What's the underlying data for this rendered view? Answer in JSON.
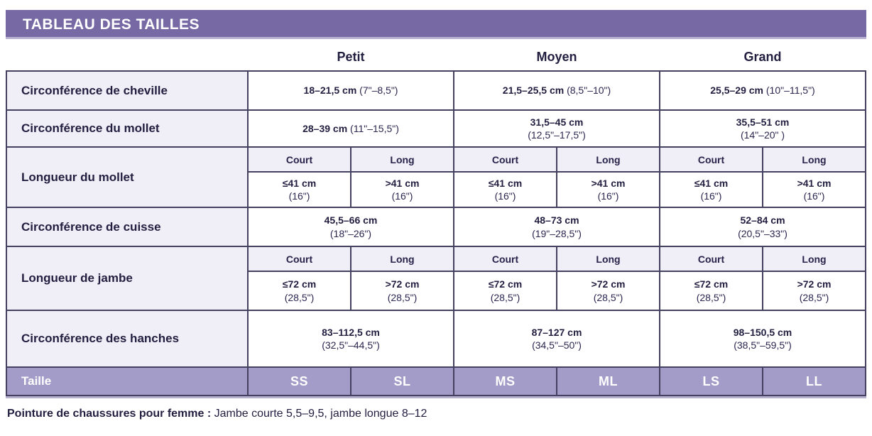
{
  "title": "TABLEAU DES TAILLES",
  "columns": {
    "petit": "Petit",
    "moyen": "Moyen",
    "grand": "Grand"
  },
  "subcols": {
    "court": "Court",
    "long": "Long"
  },
  "rows": {
    "ankle": {
      "label": "Circonférence de cheville",
      "petit": {
        "cm": "18–21,5 cm",
        "in": "(7\"–8,5\")"
      },
      "moyen": {
        "cm": "21,5–25,5 cm",
        "in": "(8,5\"–10\")"
      },
      "grand": {
        "cm": "25,5–29 cm",
        "in": "(10\"–11,5\")"
      }
    },
    "calf_circ": {
      "label": "Circonférence du mollet",
      "petit": {
        "cm": "28–39 cm",
        "in": "(11\"–15,5\")"
      },
      "moyen": {
        "cm": "31,5–45 cm",
        "in": "(12,5\"–17,5\")"
      },
      "grand": {
        "cm": "35,5–51 cm",
        "in": "(14\"–20\" )"
      }
    },
    "calf_len": {
      "label": "Longueur du mollet",
      "petit_court": {
        "cm": "≤41 cm",
        "in": "(16\")"
      },
      "petit_long": {
        "cm": ">41 cm",
        "in": "(16\")"
      },
      "moyen_court": {
        "cm": "≤41 cm",
        "in": "(16\")"
      },
      "moyen_long": {
        "cm": ">41 cm",
        "in": "(16\")"
      },
      "grand_court": {
        "cm": "≤41 cm",
        "in": "(16\")"
      },
      "grand_long": {
        "cm": ">41 cm",
        "in": "(16\")"
      }
    },
    "thigh": {
      "label": "Circonférence de cuisse",
      "petit": {
        "cm": "45,5–66 cm",
        "in": "(18\"–26\")"
      },
      "moyen": {
        "cm": "48–73 cm",
        "in": "(19\"–28,5\")"
      },
      "grand": {
        "cm": "52–84 cm",
        "in": "(20,5\"–33\")"
      }
    },
    "leg_len": {
      "label": "Longueur de jambe",
      "petit_court": {
        "cm": "≤72 cm",
        "in": "(28,5\")"
      },
      "petit_long": {
        "cm": ">72 cm",
        "in": "(28,5\")"
      },
      "moyen_court": {
        "cm": "≤72 cm",
        "in": "(28,5\")"
      },
      "moyen_long": {
        "cm": ">72 cm",
        "in": "(28,5\")"
      },
      "grand_court": {
        "cm": "≤72 cm",
        "in": "(28,5\")"
      },
      "grand_long": {
        "cm": ">72 cm",
        "in": "(28,5\")"
      }
    },
    "hips": {
      "label": "Circonférence des hanches",
      "petit": {
        "cm": "83–112,5 cm",
        "in": "(32,5\"–44,5\")"
      },
      "moyen": {
        "cm": "87–127 cm",
        "in": "(34,5\"–50\")"
      },
      "grand": {
        "cm": "98–150,5 cm",
        "in": "(38,5\"–59,5\")"
      }
    },
    "size": {
      "label": "Taille",
      "values": [
        "SS",
        "SL",
        "MS",
        "ML",
        "LS",
        "LL"
      ]
    }
  },
  "footer": {
    "label": "Pointure de chaussures pour femme :",
    "text": "Jambe courte 5,5–9,5, jambe longue 8–12"
  },
  "colors": {
    "header_purple": "#776aa4",
    "size_row_purple": "#a39bc8",
    "cell_lavender": "#f0eef6",
    "border": "#434060",
    "text": "#221e40"
  },
  "chart_data": {
    "type": "table",
    "title": "TABLEAU DES TAILLES",
    "columns": [
      "",
      "Petit",
      "Moyen",
      "Grand"
    ],
    "rows": [
      [
        "Circonférence de cheville",
        "18–21,5 cm (7\"–8,5\")",
        "21,5–25,5 cm (8,5\"–10\")",
        "25,5–29 cm (10\"–11,5\")"
      ],
      [
        "Circonférence du mollet",
        "28–39 cm (11\"–15,5\")",
        "31,5–45 cm (12,5\"–17,5\")",
        "35,5–51 cm (14\"–20\" )"
      ],
      [
        "Longueur du mollet – Court",
        "≤41 cm (16\")",
        "≤41 cm (16\")",
        "≤41 cm (16\")"
      ],
      [
        "Longueur du mollet – Long",
        ">41 cm (16\")",
        ">41 cm (16\")",
        ">41 cm (16\")"
      ],
      [
        "Circonférence de cuisse",
        "45,5–66 cm (18\"–26\")",
        "48–73 cm (19\"–28,5\")",
        "52–84 cm (20,5\"–33\")"
      ],
      [
        "Longueur de jambe – Court",
        "≤72 cm (28,5\")",
        "≤72 cm (28,5\")",
        "≤72 cm (28,5\")"
      ],
      [
        "Longueur de jambe – Long",
        ">72 cm (28,5\")",
        ">72 cm (28,5\")",
        ">72 cm (28,5\")"
      ],
      [
        "Circonférence des hanches",
        "83–112,5 cm (32,5\"–44,5\")",
        "87–127 cm (34,5\"–50\")",
        "98–150,5 cm (38,5\"–59,5\")"
      ],
      [
        "Taille",
        "SS / SL",
        "MS / ML",
        "LS / LL"
      ]
    ],
    "footnote": "Pointure de chaussures pour femme : Jambe courte 5,5–9,5, jambe longue 8–12"
  }
}
